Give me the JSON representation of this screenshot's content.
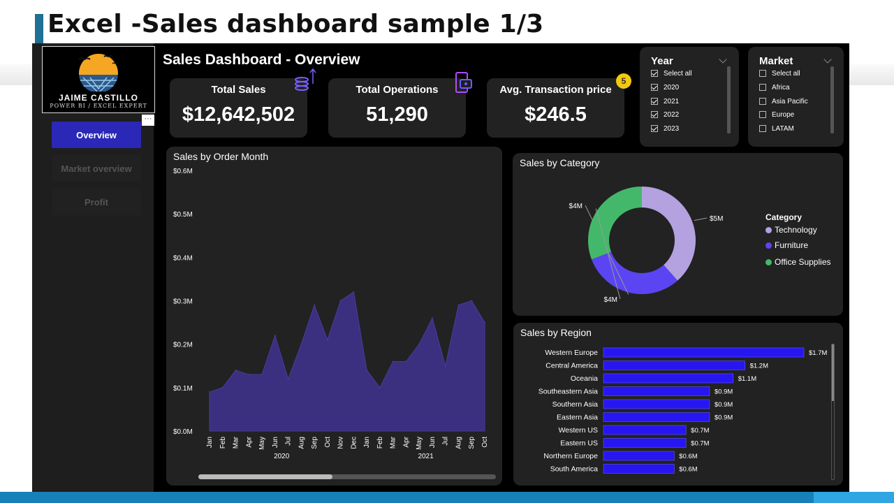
{
  "slide": {
    "title": "Excel -Sales dashboard sample 1/3"
  },
  "logo": {
    "name": "JAIME CASTILLO",
    "subtitle": "POWER BI / EXCEL EXPERT"
  },
  "more_options": "···",
  "nav": [
    {
      "label": "Overview",
      "active": true
    },
    {
      "label": "Market overview",
      "active": false
    },
    {
      "label": "Profit",
      "active": false
    }
  ],
  "dashboard": {
    "title": "Sales Dashboard - Overview"
  },
  "kpis": [
    {
      "label": "Total Sales",
      "value": "$12,642,502",
      "icon": "coins-stack-icon"
    },
    {
      "label": "Total Operations",
      "value": "51,290",
      "icon": "payment-device-icon"
    },
    {
      "label": "Avg. Transaction price",
      "value": "$246.5",
      "icon": "none"
    }
  ],
  "badge": "5",
  "year_slicer": {
    "title": "Year",
    "items": [
      {
        "label": "Select all",
        "checked": true
      },
      {
        "label": "2020",
        "checked": true
      },
      {
        "label": "2021",
        "checked": true
      },
      {
        "label": "2022",
        "checked": true
      },
      {
        "label": "2023",
        "checked": true
      }
    ]
  },
  "market_slicer": {
    "title": "Market",
    "items": [
      {
        "label": "Select all",
        "checked": false
      },
      {
        "label": "Africa",
        "checked": false
      },
      {
        "label": "Asia Pacific",
        "checked": false
      },
      {
        "label": "Europe",
        "checked": false
      },
      {
        "label": "LATAM",
        "checked": false
      }
    ]
  },
  "colors": {
    "accent": "#2b28b8",
    "area": "#3b2f7f",
    "technology": "#b4a1e0",
    "furniture": "#5b45f2",
    "office_supplies": "#44b86a",
    "bar": "#2716f0"
  },
  "chart_data": [
    {
      "type": "area",
      "title": "Sales by Order Month",
      "x": [
        "Jan",
        "Feb",
        "Mar",
        "Apr",
        "May",
        "Jun",
        "Jul",
        "Aug",
        "Sep",
        "Oct",
        "Nov",
        "Dec",
        "Jan",
        "Feb",
        "Mar",
        "Apr",
        "May",
        "Jun",
        "Jul",
        "Aug",
        "Sep",
        "Oct"
      ],
      "year_labels": [
        {
          "label": "2020",
          "index": 5.5
        },
        {
          "label": "2021",
          "index": 16.5
        }
      ],
      "values": [
        0.09,
        0.1,
        0.14,
        0.13,
        0.13,
        0.22,
        0.12,
        0.2,
        0.29,
        0.21,
        0.3,
        0.32,
        0.14,
        0.1,
        0.16,
        0.16,
        0.2,
        0.26,
        0.15,
        0.29,
        0.3,
        0.25
      ],
      "yticks": [
        "$0.0M",
        "$0.1M",
        "$0.2M",
        "$0.3M",
        "$0.4M",
        "$0.5M",
        "$0.6M"
      ],
      "ylim": [
        0,
        0.6
      ]
    },
    {
      "type": "pie",
      "title": "Sales by Category",
      "legend_title": "Category",
      "slices": [
        {
          "name": "Technology",
          "value": 5,
          "label": "$5M"
        },
        {
          "name": "Furniture",
          "value": 4,
          "label": "$4M"
        },
        {
          "name": "Office Supplies",
          "value": 4,
          "label": "$4M"
        }
      ]
    },
    {
      "type": "bar",
      "title": "Sales by Region",
      "categories": [
        "Western Europe",
        "Central America",
        "Oceania",
        "Southeastern Asia",
        "Southern Asia",
        "Eastern Asia",
        "Western US",
        "Eastern US",
        "Northern Europe",
        "South America"
      ],
      "values": [
        1.7,
        1.2,
        1.1,
        0.9,
        0.9,
        0.9,
        0.7,
        0.7,
        0.6,
        0.6
      ],
      "labels": [
        "$1.7M",
        "$1.2M",
        "$1.1M",
        "$0.9M",
        "$0.9M",
        "$0.9M",
        "$0.7M",
        "$0.7M",
        "$0.6M",
        "$0.6M"
      ],
      "xlim": [
        0,
        1.7
      ]
    }
  ]
}
